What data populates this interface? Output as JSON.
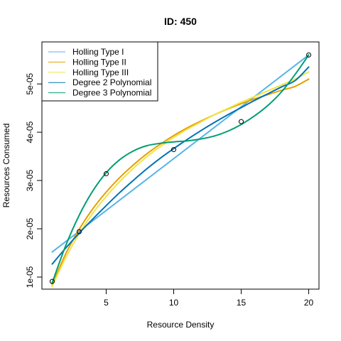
{
  "chart_data": {
    "type": "scatter",
    "title": "ID: 450",
    "xlabel": "Resource Density",
    "ylabel": "Resources Consumed",
    "xlim": [
      0.24,
      20.76
    ],
    "ylim": [
      7.5e-06,
      5.87e-05
    ],
    "x_ticks": [
      5,
      10,
      15,
      20
    ],
    "x_tick_labels": [
      "5",
      "10",
      "15",
      "20"
    ],
    "y_ticks": [
      1e-05,
      2e-05,
      3e-05,
      4e-05,
      5e-05
    ],
    "y_tick_labels": [
      "1e-05",
      "2e-05",
      "3e-05",
      "4e-05",
      "5e-05"
    ],
    "grid": false,
    "legend_position": "top-left",
    "points": [
      {
        "x": 1,
        "y": 9.1e-06
      },
      {
        "x": 3,
        "y": 1.94e-05
      },
      {
        "x": 5,
        "y": 3.14e-05
      },
      {
        "x": 10,
        "y": 3.64e-05
      },
      {
        "x": 15,
        "y": 4.22e-05
      },
      {
        "x": 20,
        "y": 5.6e-05
      }
    ],
    "series": [
      {
        "name": "Holling Type I",
        "color": "#56B4E9",
        "x": [
          1,
          20
        ],
        "y": [
          1.52e-05,
          5.6e-05
        ]
      },
      {
        "name": "Holling Type II",
        "color": "#E69F00",
        "x": [
          1,
          2,
          3,
          4,
          5,
          6,
          7,
          8,
          9,
          10,
          11,
          12,
          13,
          14,
          15,
          16,
          17,
          18,
          19,
          20
        ],
        "y": [
          8.4e-06,
          1.48e-05,
          1.99e-05,
          2.41e-05,
          2.76e-05,
          3.06e-05,
          3.32e-05,
          3.55e-05,
          3.75e-05,
          3.93e-05,
          4.09e-05,
          4.23e-05,
          4.36e-05,
          4.48e-05,
          4.59e-05,
          4.69e-05,
          4.78e-05,
          4.87e-05,
          4.95e-05,
          5.1e-05
        ]
      },
      {
        "name": "Holling Type III",
        "color": "#F0E442",
        "x": [
          1,
          2,
          3,
          4,
          5,
          6,
          7,
          8,
          9,
          10,
          11,
          12,
          13,
          14,
          15,
          16,
          17,
          18,
          19,
          20
        ],
        "y": [
          8.1e-06,
          1.4e-05,
          1.9e-05,
          2.32e-05,
          2.67e-05,
          2.98e-05,
          3.25e-05,
          3.49e-05,
          3.7e-05,
          3.89e-05,
          4.06e-05,
          4.21e-05,
          4.36e-05,
          4.49e-05,
          4.62e-05,
          4.74e-05,
          4.86e-05,
          4.98e-05,
          5.1e-05,
          5.25e-05
        ]
      },
      {
        "name": "Degree 2 Polynomial",
        "color": "#0072B2",
        "x": [
          1,
          2,
          3,
          4,
          5,
          6,
          7,
          8,
          9,
          10,
          11,
          12,
          13,
          14,
          15,
          16,
          17,
          18,
          19,
          20
        ],
        "y": [
          1.27e-05,
          1.6e-05,
          1.91e-05,
          2.2e-05,
          2.48e-05,
          2.75e-05,
          3e-05,
          3.24e-05,
          3.46e-05,
          3.66e-05,
          3.85e-05,
          4.03e-05,
          4.2e-05,
          4.36e-05,
          4.51e-05,
          4.66e-05,
          4.8e-05,
          4.94e-05,
          5.07e-05,
          5.35e-05
        ]
      },
      {
        "name": "Degree 3 Polynomial",
        "color": "#009E73",
        "x": [
          1,
          2,
          3,
          4,
          5,
          6,
          7,
          8,
          9,
          10,
          11,
          12,
          13,
          14,
          15,
          16,
          17,
          18,
          19,
          20
        ],
        "y": [
          8.8e-06,
          1.65e-05,
          2.28e-05,
          2.78e-05,
          3.16e-05,
          3.43e-05,
          3.61e-05,
          3.72e-05,
          3.77e-05,
          3.8e-05,
          3.82e-05,
          3.86e-05,
          3.92e-05,
          4.02e-05,
          4.16e-05,
          4.34e-05,
          4.56e-05,
          4.84e-05,
          5.2e-05,
          5.6e-05
        ]
      }
    ]
  }
}
